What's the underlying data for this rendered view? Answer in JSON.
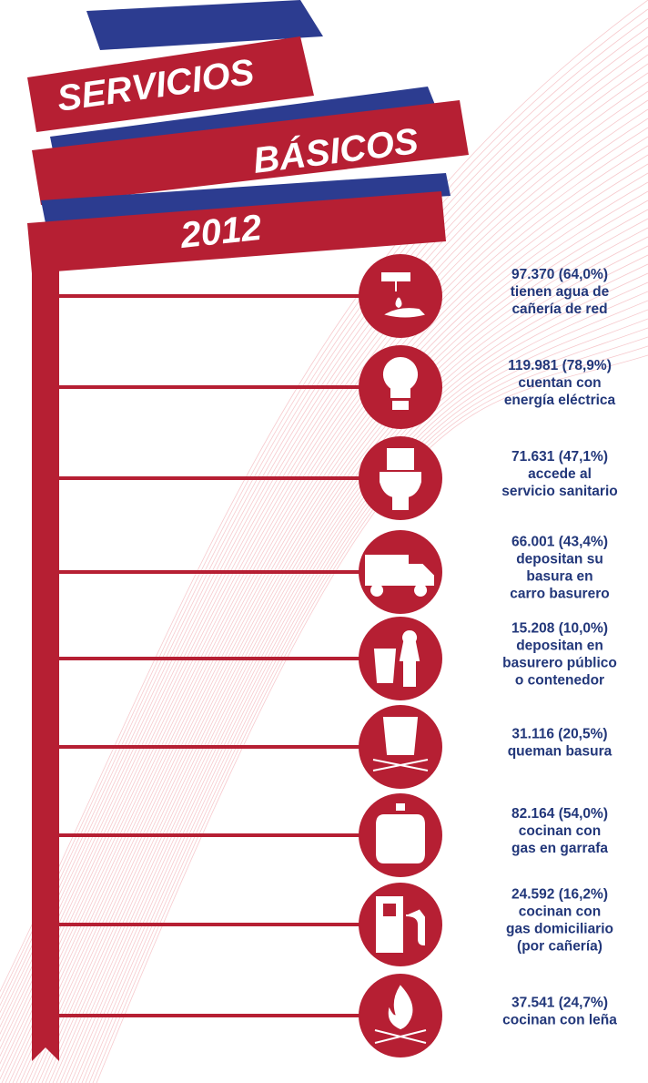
{
  "header": {
    "title_line1": "SERVICIOS",
    "title_line2": "BÁSICOS",
    "year": "2012"
  },
  "items": [
    {
      "stat": "97.370  (64,0%)",
      "lines": [
        "tienen agua de",
        "cañería de red"
      ]
    },
    {
      "stat": "119.981  (78,9%)",
      "lines": [
        "cuentan con",
        "energía eléctrica"
      ]
    },
    {
      "stat": "71.631 (47,1%)",
      "lines": [
        "accede al",
        "servicio sanitario"
      ]
    },
    {
      "stat": "66.001 (43,4%)",
      "lines": [
        "depositan su",
        "basura en",
        "carro basurero"
      ]
    },
    {
      "stat": "15.208 (10,0%)",
      "lines": [
        "depositan en",
        "basurero público",
        "o contenedor"
      ]
    },
    {
      "stat": "31.116 (20,5%)",
      "lines": [
        "queman basura"
      ]
    },
    {
      "stat": "82.164 (54,0%)",
      "lines": [
        "cocinan con",
        "gas en garrafa"
      ]
    },
    {
      "stat": "24.592 (16,2%)",
      "lines": [
        "cocinan con",
        "gas domiciliario",
        "(por cañería)"
      ]
    },
    {
      "stat": "37.541 (24,7%)",
      "lines": [
        "cocinan con leña"
      ]
    }
  ]
}
